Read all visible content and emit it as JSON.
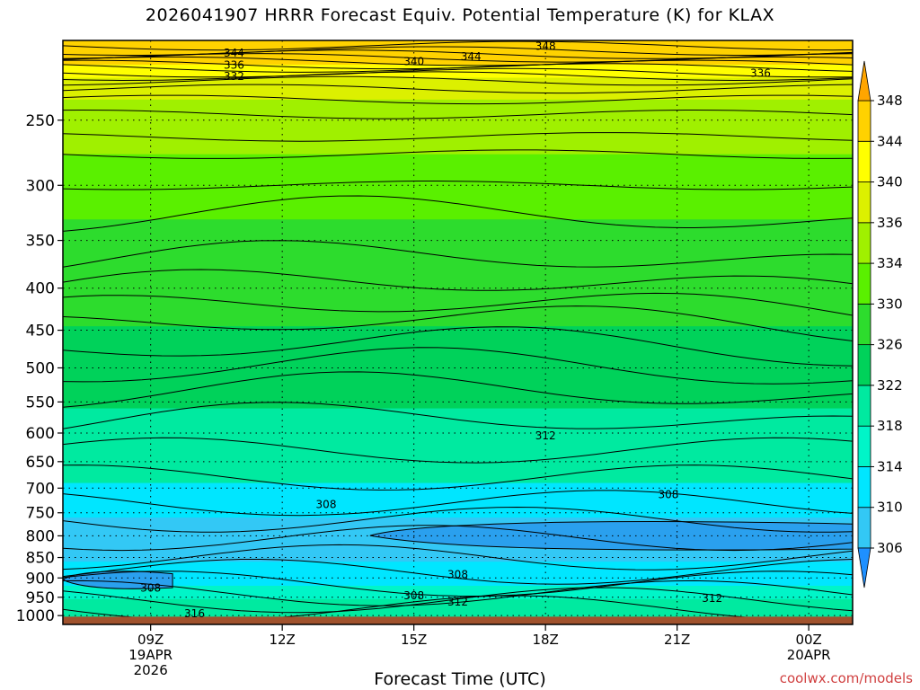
{
  "chart_data": {
    "type": "heatmap",
    "subtype": "time-height cross section (filled contours)",
    "title": "2026041907 HRRR Forecast Equiv. Potential Temperature (K) for KLAX",
    "xlabel": "Forecast Time (UTC)",
    "ylabel": "",
    "credit": "coolwx.com/models",
    "y_axis": {
      "quantity": "pressure (hPa)",
      "inverted": true,
      "scale": "log",
      "range": [
        1025,
        200
      ],
      "ticks": [
        250,
        300,
        350,
        400,
        450,
        500,
        550,
        600,
        650,
        700,
        750,
        800,
        850,
        900,
        950,
        1000
      ]
    },
    "x_axis": {
      "range_hours_utc": [
        7,
        25
      ],
      "ticks": [
        {
          "hour": 9,
          "lines": [
            "09Z",
            "19APR",
            "2026"
          ]
        },
        {
          "hour": 12,
          "lines": [
            "12Z"
          ]
        },
        {
          "hour": 15,
          "lines": [
            "15Z"
          ]
        },
        {
          "hour": 18,
          "lines": [
            "18Z"
          ]
        },
        {
          "hour": 21,
          "lines": [
            "21Z"
          ]
        },
        {
          "hour": 24,
          "lines": [
            "00Z",
            "20APR"
          ]
        }
      ]
    },
    "grid": "dotted",
    "colorbar": {
      "levels": [
        306,
        310,
        314,
        318,
        322,
        326,
        330,
        334,
        336,
        340,
        344,
        348
      ],
      "colors": [
        "#33c8f5",
        "#00e6ff",
        "#00f5c8",
        "#00eaa0",
        "#00d25a",
        "#2ddc2d",
        "#5af000",
        "#a0f000",
        "#dcf000",
        "#ffff00",
        "#ffd200",
        "#ffa500"
      ],
      "extend": "both",
      "placement": "right"
    },
    "surface_color": "#a0522d",
    "contour_labels": [
      {
        "value": 348,
        "hour": 18.0,
        "p": 203
      },
      {
        "value": 344,
        "hour": 10.9,
        "p": 207
      },
      {
        "value": 344,
        "hour": 16.3,
        "p": 209
      },
      {
        "value": 340,
        "hour": 15.0,
        "p": 212
      },
      {
        "value": 336,
        "hour": 10.9,
        "p": 214
      },
      {
        "value": 336,
        "hour": 22.9,
        "p": 219
      },
      {
        "value": 332,
        "hour": 10.9,
        "p": 221
      },
      {
        "value": 312,
        "hour": 18.0,
        "p": 604
      },
      {
        "value": 308,
        "hour": 13.0,
        "p": 732
      },
      {
        "value": 308,
        "hour": 20.8,
        "p": 712
      },
      {
        "value": 308,
        "hour": 16.0,
        "p": 890
      },
      {
        "value": 308,
        "hour": 9.0,
        "p": 925
      },
      {
        "value": 308,
        "hour": 15.0,
        "p": 945
      },
      {
        "value": 312,
        "hour": 16.0,
        "p": 961
      },
      {
        "value": 312,
        "hour": 21.8,
        "p": 952
      },
      {
        "value": 316,
        "hour": 10.0,
        "p": 993
      }
    ],
    "features": [
      {
        "name": "low-theta-e pocket",
        "value": "<306",
        "hours": [
          14,
          25
        ],
        "p_range": [
          770,
          830
        ]
      },
      {
        "name": "low-theta-e pocket",
        "value": "<306",
        "hours": [
          7,
          9.5
        ],
        "p_range": [
          885,
          925
        ]
      }
    ]
  }
}
